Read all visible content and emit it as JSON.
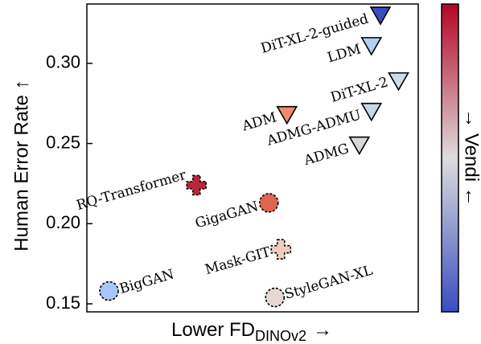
{
  "chart_data": {
    "type": "scatter",
    "title": "",
    "xlabel_main": "Lower FD",
    "xlabel_sub": "DINOv2",
    "xlabel_arrow": "→",
    "ylabel": "Human Error Rate ↑",
    "colorbar_label": "→ Vendi ←",
    "ylim": [
      0.145,
      0.337
    ],
    "yticks": [
      "0.15",
      "0.20",
      "0.25",
      "0.30"
    ],
    "grid": false,
    "points": [
      {
        "name": "BigGAN",
        "x": 0.02,
        "y": 0.158,
        "marker": "circle",
        "dashed": true,
        "color": "#a9c6fb"
      },
      {
        "name": "StyleGAN-XL",
        "x": 0.57,
        "y": 0.154,
        "marker": "circle",
        "dashed": true,
        "color": "#e6d8d1"
      },
      {
        "name": "Mask-GIT",
        "x": 0.59,
        "y": 0.184,
        "marker": "plus",
        "dashed": true,
        "color": "#f0cdbb"
      },
      {
        "name": "GigaGAN",
        "x": 0.55,
        "y": 0.213,
        "marker": "circle",
        "dashed": true,
        "color": "#e0654f"
      },
      {
        "name": "RQ-Transformer",
        "x": 0.31,
        "y": 0.224,
        "marker": "plus",
        "dashed": true,
        "color": "#be2438"
      },
      {
        "name": "ADM",
        "x": 0.61,
        "y": 0.268,
        "marker": "triangle",
        "dashed": false,
        "color": "#f08c6e"
      },
      {
        "name": "ADMG",
        "x": 0.85,
        "y": 0.249,
        "marker": "triangle",
        "dashed": false,
        "color": "#d9d7d5"
      },
      {
        "name": "ADMG-ADMU",
        "x": 0.89,
        "y": 0.27,
        "marker": "triangle",
        "dashed": false,
        "color": "#c7d6ea"
      },
      {
        "name": "DiT-XL-2",
        "x": 0.98,
        "y": 0.289,
        "marker": "triangle",
        "dashed": false,
        "color": "#d0dbea"
      },
      {
        "name": "LDM",
        "x": 0.89,
        "y": 0.311,
        "marker": "triangle",
        "dashed": false,
        "color": "#b6cef5"
      },
      {
        "name": "DiT-XL-2-guided",
        "x": 0.92,
        "y": 0.33,
        "marker": "triangle",
        "dashed": false,
        "color": "#3b4cc0"
      }
    ],
    "colorbar": {
      "colormap": "coolwarm",
      "top_color": "#b40426",
      "mid_color": "#dddcdc",
      "bottom_color": "#3b4cc0"
    }
  }
}
